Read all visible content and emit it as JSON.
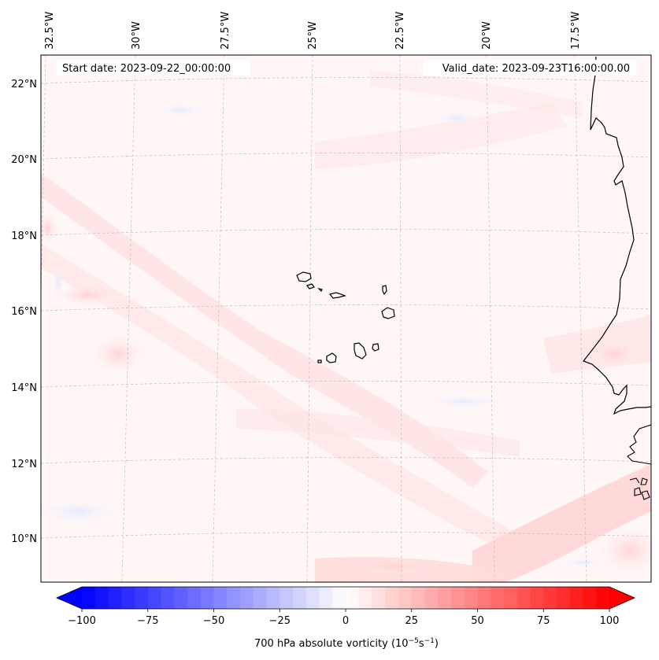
{
  "map": {
    "start_date": "Start date: 2023-09-22_00:00:00",
    "valid_date": "Valid_date: 2023-09-23T16:00:00.00",
    "lon_labels": [
      "32.5°W",
      "30°W",
      "27.5°W",
      "25°W",
      "22.5°W",
      "20°W",
      "17.5°W"
    ],
    "lat_labels": [
      "22°N",
      "20°N",
      "18°N",
      "16°N",
      "14°N",
      "12°N",
      "10°N"
    ],
    "coastline_color": "#000000",
    "gridline_color": "#bbbbbb"
  },
  "colorbar": {
    "label_main": "700 hPa absolute vorticity (10",
    "label_exp1": "−5",
    "label_mid": "s",
    "label_exp2": "−1",
    "label_end": ")",
    "ticks": [
      "−100",
      "−75",
      "−50",
      "−25",
      "0",
      "25",
      "50",
      "75",
      "100"
    ],
    "vmin": -100,
    "vmax": 100,
    "low_color": "#0000ff",
    "mid_color": "#ffffff",
    "high_color": "#ff0000"
  }
}
